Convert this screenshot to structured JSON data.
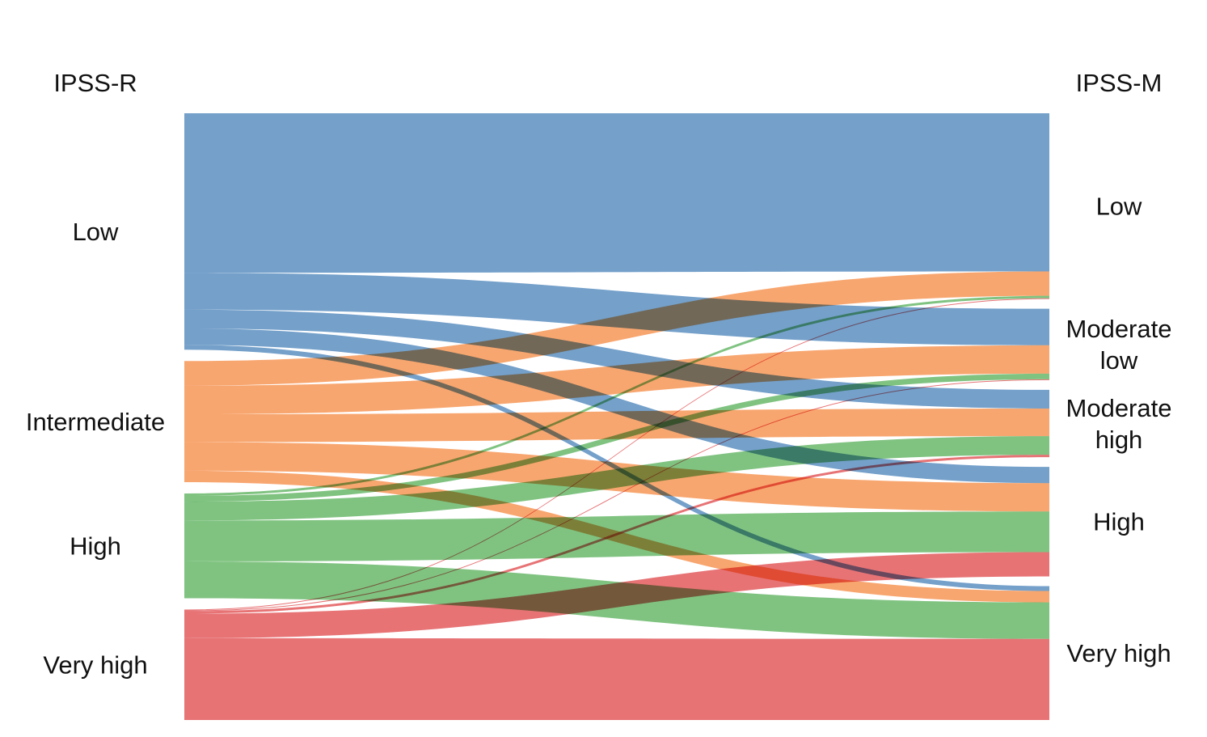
{
  "chart_data": {
    "type": "sankey",
    "left_axis_title": "IPSS-R",
    "right_axis_title": "IPSS-M",
    "colors": {
      "Low": "#5b8fc1",
      "Intermediate": "#f79655",
      "High": "#6ab96b",
      "Very high": "#e35a5d"
    },
    "left_nodes": [
      {
        "name": "Low",
        "label_lines": [
          "Low"
        ]
      },
      {
        "name": "Intermediate",
        "label_lines": [
          "Intermediate"
        ]
      },
      {
        "name": "High",
        "label_lines": [
          "High"
        ]
      },
      {
        "name": "Very high",
        "label_lines": [
          "Very high"
        ]
      }
    ],
    "right_nodes": [
      {
        "name": "Low",
        "label_lines": [
          "Low"
        ]
      },
      {
        "name": "Moderate low",
        "label_lines": [
          "Moderate",
          "low"
        ]
      },
      {
        "name": "Moderate high",
        "label_lines": [
          "Moderate",
          "high"
        ]
      },
      {
        "name": "High",
        "label_lines": [
          "High"
        ]
      },
      {
        "name": "Very high",
        "label_lines": [
          "Very high"
        ]
      }
    ],
    "flows": [
      {
        "source": "Low",
        "target": "Low",
        "value": 195
      },
      {
        "source": "Low",
        "target": "Moderate low",
        "value": 45
      },
      {
        "source": "Low",
        "target": "Moderate high",
        "value": 23
      },
      {
        "source": "Low",
        "target": "High",
        "value": 20
      },
      {
        "source": "Low",
        "target": "Very high",
        "value": 6
      },
      {
        "source": "Intermediate",
        "target": "Low",
        "value": 30
      },
      {
        "source": "Intermediate",
        "target": "Moderate low",
        "value": 35
      },
      {
        "source": "Intermediate",
        "target": "Moderate high",
        "value": 34
      },
      {
        "source": "Intermediate",
        "target": "High",
        "value": 35
      },
      {
        "source": "Intermediate",
        "target": "Very high",
        "value": 14
      },
      {
        "source": "High",
        "target": "Low",
        "value": 3
      },
      {
        "source": "High",
        "target": "Moderate low",
        "value": 7
      },
      {
        "source": "High",
        "target": "Moderate high",
        "value": 23
      },
      {
        "source": "High",
        "target": "High",
        "value": 50
      },
      {
        "source": "High",
        "target": "Very high",
        "value": 45
      },
      {
        "source": "Very high",
        "target": "Low",
        "value": 1
      },
      {
        "source": "Very high",
        "target": "Moderate low",
        "value": 1
      },
      {
        "source": "Very high",
        "target": "Moderate high",
        "value": 3
      },
      {
        "source": "Very high",
        "target": "High",
        "value": 30
      },
      {
        "source": "Very high",
        "target": "Very high",
        "value": 100
      }
    ]
  }
}
